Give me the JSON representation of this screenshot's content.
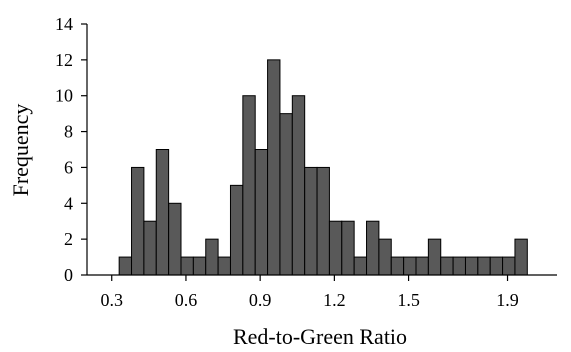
{
  "chart_data": {
    "type": "bar",
    "title": "",
    "xlabel": "Red-to-Green Ratio",
    "ylabel": "Frequency",
    "bin_width": 0.05,
    "bin_starts": [
      0.33,
      0.38,
      0.43,
      0.48,
      0.53,
      0.58,
      0.63,
      0.68,
      0.73,
      0.78,
      0.83,
      0.88,
      0.93,
      0.98,
      1.03,
      1.08,
      1.13,
      1.18,
      1.23,
      1.28,
      1.33,
      1.38,
      1.43,
      1.48,
      1.53,
      1.58,
      1.63,
      1.68,
      1.73,
      1.78,
      1.83,
      1.88,
      1.93
    ],
    "values": [
      1,
      6,
      3,
      7,
      4,
      1,
      1,
      2,
      1,
      5,
      10,
      7,
      12,
      9,
      10,
      6,
      6,
      3,
      3,
      1,
      3,
      2,
      1,
      1,
      1,
      2,
      1,
      1,
      1,
      1,
      1,
      1,
      2
    ],
    "xlim": [
      0.2,
      2.1
    ],
    "ylim": [
      0,
      14
    ],
    "xticks": [
      "0.3",
      "0.6",
      "0.9",
      "1.2",
      "1.5",
      "1.9"
    ],
    "yticks": [
      "0",
      "2",
      "4",
      "6",
      "8",
      "10",
      "12",
      "14"
    ],
    "grid": false,
    "legend": "none",
    "bar_color": "#595959",
    "bar_edge_color": "#000000"
  }
}
